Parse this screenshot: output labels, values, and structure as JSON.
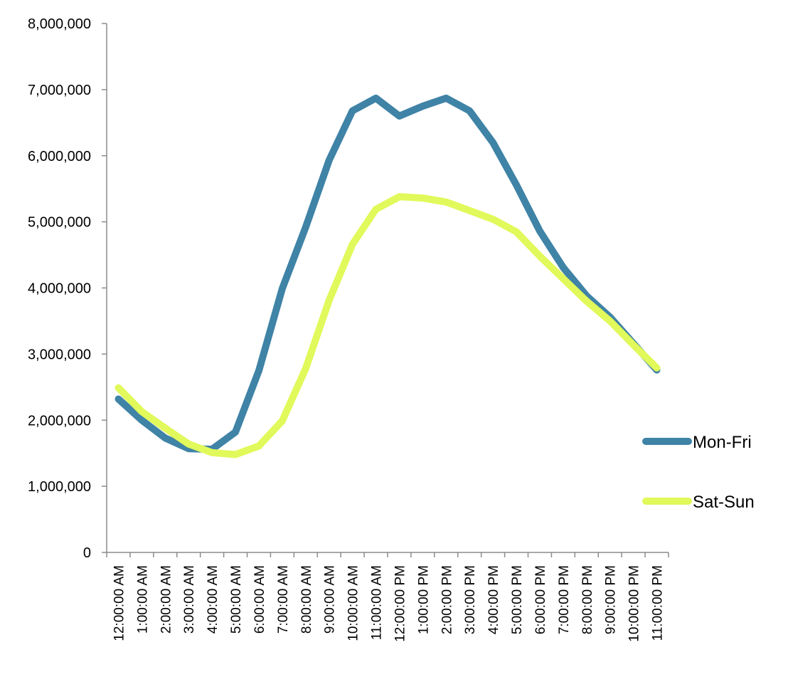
{
  "chart_data": {
    "type": "line",
    "title": "",
    "xlabel": "",
    "ylabel": "",
    "ylim": [
      0,
      8000000
    ],
    "yticks": [
      "0",
      "1,000,000",
      "2,000,000",
      "3,000,000",
      "4,000,000",
      "5,000,000",
      "6,000,000",
      "7,000,000",
      "8,000,000"
    ],
    "ytick_values": [
      0,
      1000000,
      2000000,
      3000000,
      4000000,
      5000000,
      6000000,
      7000000,
      8000000
    ],
    "categories": [
      "12:00:00 AM",
      "1:00:00 AM",
      "2:00:00 AM",
      "3:00:00 AM",
      "4:00:00 AM",
      "5:00:00 AM",
      "6:00:00 AM",
      "7:00:00 AM",
      "8:00:00 AM",
      "9:00:00 AM",
      "10:00:00 AM",
      "11:00:00 AM",
      "12:00:00 PM",
      "1:00:00 PM",
      "2:00:00 PM",
      "3:00:00 PM",
      "4:00:00 PM",
      "5:00:00 PM",
      "6:00:00 PM",
      "7:00:00 PM",
      "8:00:00 PM",
      "9:00:00 PM",
      "10:00:00 PM",
      "11:00:00 PM"
    ],
    "series": [
      {
        "name": "Mon-Fri",
        "color": "#3f83a6",
        "values": [
          2320000,
          2000000,
          1730000,
          1570000,
          1560000,
          1820000,
          2750000,
          3990000,
          4920000,
          5930000,
          6680000,
          6870000,
          6600000,
          6750000,
          6870000,
          6680000,
          6200000,
          5560000,
          4860000,
          4310000,
          3880000,
          3560000,
          3160000,
          2760000
        ]
      },
      {
        "name": "Sat-Sun",
        "color": "#e1f95a",
        "values": [
          2490000,
          2130000,
          1880000,
          1640000,
          1510000,
          1480000,
          1610000,
          1990000,
          2780000,
          3810000,
          4660000,
          5190000,
          5380000,
          5360000,
          5300000,
          5170000,
          5040000,
          4850000,
          4480000,
          4140000,
          3800000,
          3500000,
          3140000,
          2790000
        ]
      }
    ],
    "grid": false,
    "legend_position": "right"
  }
}
